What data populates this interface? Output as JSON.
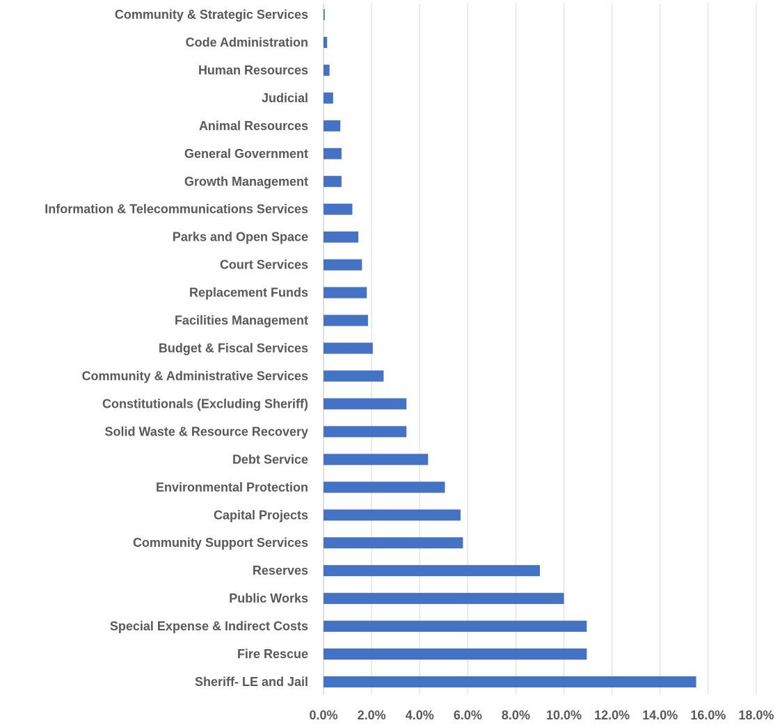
{
  "chart_data": {
    "type": "bar",
    "orientation": "horizontal",
    "categories": [
      "Community & Strategic Services",
      "Code Administration",
      "Human Resources",
      "Judicial",
      "Animal Resources",
      "General Government",
      "Growth Management",
      "Information & Telecommunications Services",
      "Parks and Open Space",
      "Court Services",
      "Replacement Funds",
      "Facilities Management",
      "Budget & Fiscal Services",
      "Community & Administrative Services",
      "Constitutionals (Excluding Sheriff)",
      "Solid Waste & Resource Recovery",
      "Debt Service",
      "Environmental Protection",
      "Capital Projects",
      "Community Support Services",
      "Reserves",
      "Public Works",
      "Special Expense & Indirect Costs",
      "Fire Rescue",
      "Sheriff- LE and Jail"
    ],
    "values": [
      0.05,
      0.15,
      0.25,
      0.4,
      0.7,
      0.75,
      0.75,
      1.2,
      1.45,
      1.6,
      1.8,
      1.85,
      2.05,
      2.5,
      3.45,
      3.45,
      4.35,
      5.05,
      5.7,
      5.8,
      9.0,
      10.0,
      10.95,
      10.95,
      15.5
    ],
    "xlim": [
      0,
      18
    ],
    "x_ticks": [
      "0.0%",
      "2.0%",
      "4.0%",
      "6.0%",
      "8.0%",
      "10.0%",
      "12.0%",
      "14.0%",
      "16.0%",
      "18.0%"
    ],
    "title": "",
    "xlabel": "",
    "ylabel": "",
    "grid": "vertical",
    "legend": "none",
    "bar_color": "#4472c4"
  }
}
